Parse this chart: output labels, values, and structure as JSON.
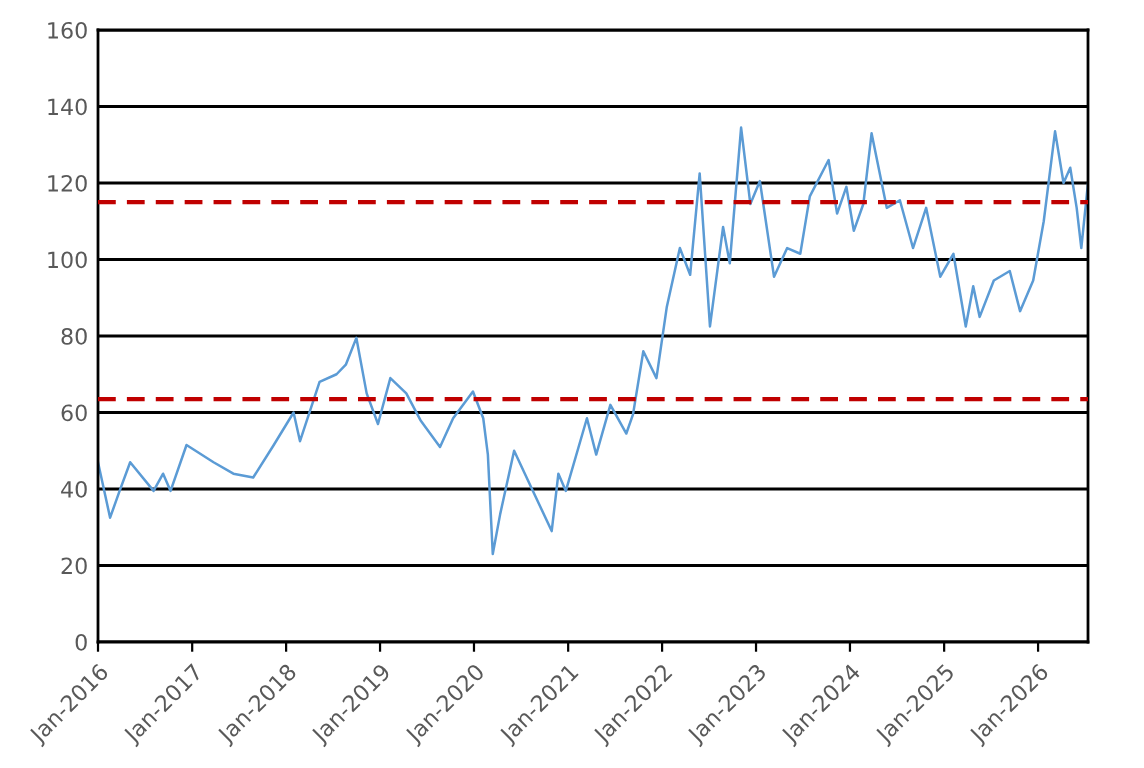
{
  "chart_data": {
    "type": "line",
    "grid": "y",
    "line_style": "solid",
    "marker": "none",
    "xlim": [
      "2016-01-01",
      "2026-07-14"
    ],
    "xticks": [
      {
        "value": "2016-01-01",
        "label": "Jan-2016"
      },
      {
        "value": "2017-01-01",
        "label": "Jan-2017"
      },
      {
        "value": "2018-01-01",
        "label": "Jan-2018"
      },
      {
        "value": "2019-01-01",
        "label": "Jan-2019"
      },
      {
        "value": "2020-01-01",
        "label": "Jan-2020"
      },
      {
        "value": "2021-01-01",
        "label": "Jan-2021"
      },
      {
        "value": "2022-01-01",
        "label": "Jan-2022"
      },
      {
        "value": "2023-01-01",
        "label": "Jan-2023"
      },
      {
        "value": "2024-01-01",
        "label": "Jan-2024"
      },
      {
        "value": "2025-01-01",
        "label": "Jan-2025"
      },
      {
        "value": "2026-01-01",
        "label": "Jan-2026"
      }
    ],
    "ylim": [
      0,
      160
    ],
    "yticks": [
      0,
      20,
      40,
      60,
      80,
      100,
      120,
      140,
      160
    ],
    "ref_lines": [
      {
        "axis": "y",
        "value": 115,
        "color": "#c00000",
        "line_style": "dashed"
      },
      {
        "axis": "y",
        "value": 63.5,
        "color": "#c00000",
        "line_style": "dashed"
      }
    ],
    "series": [
      {
        "color": "#5b9bd5",
        "x": [
          "2016-01-01",
          "2016-02-17",
          "2016-03-25",
          "2016-05-05",
          "2016-08-04",
          "2016-09-10",
          "2016-10-09",
          "2016-12-10",
          "2017-03-25",
          "2017-06-10",
          "2017-08-26",
          "2017-11-14",
          "2018-01-30",
          "2018-02-24",
          "2018-05-11",
          "2018-07-16",
          "2018-08-21",
          "2018-10-01",
          "2018-11-10",
          "2018-12-24",
          "2019-02-10",
          "2019-04-13",
          "2019-06-07",
          "2019-08-22",
          "2019-10-12",
          "2019-12-28",
          "2020-02-06",
          "2020-02-24",
          "2020-03-14",
          "2020-04-12",
          "2020-06-05",
          "2020-08-17",
          "2020-10-29",
          "2020-11-24",
          "2020-12-23",
          "2021-03-15",
          "2021-04-20",
          "2021-06-14",
          "2021-08-15",
          "2021-09-10",
          "2021-10-20",
          "2021-12-10",
          "2022-01-19",
          "2022-03-11",
          "2022-04-20",
          "2022-05-27",
          "2022-07-06",
          "2022-08-26",
          "2022-09-21",
          "2022-11-04",
          "2022-12-10",
          "2023-01-16",
          "2023-03-12",
          "2023-05-02",
          "2023-06-22",
          "2023-07-29",
          "2023-10-10",
          "2023-11-12",
          "2023-12-18",
          "2024-01-16",
          "2024-02-22",
          "2024-03-25",
          "2024-05-23",
          "2024-07-13",
          "2024-09-02",
          "2024-10-23",
          "2024-12-17",
          "2025-02-06",
          "2025-03-26",
          "2025-04-24",
          "2025-05-19",
          "2025-07-13",
          "2025-09-13",
          "2025-10-23",
          "2025-12-13",
          "2026-01-23",
          "2026-03-08",
          "2026-04-10",
          "2026-05-06",
          "2026-05-31",
          "2026-06-18",
          "2026-07-14"
        ],
        "values": [
          47,
          32.5,
          39.5,
          47,
          39.5,
          44,
          39.5,
          51.5,
          47,
          44,
          43,
          51.5,
          60,
          52.5,
          68,
          70,
          72.5,
          79.5,
          65,
          57,
          69,
          65,
          58,
          51,
          58.5,
          65.5,
          58.5,
          49,
          23,
          33.5,
          50,
          39.5,
          29,
          44,
          39.5,
          58.5,
          49,
          62,
          54.5,
          59.5,
          76,
          69,
          87.5,
          103,
          96,
          122.5,
          82.5,
          108.5,
          99,
          134.5,
          114.5,
          120.5,
          95.5,
          103,
          101.5,
          116.5,
          126,
          112,
          119,
          107.5,
          114.5,
          133,
          113.5,
          115.5,
          103,
          113.5,
          95.5,
          101.5,
          82.5,
          93,
          85,
          94.5,
          97,
          86.5,
          94.5,
          110,
          133.5,
          120,
          124,
          113.5,
          103,
          120
        ]
      }
    ]
  }
}
